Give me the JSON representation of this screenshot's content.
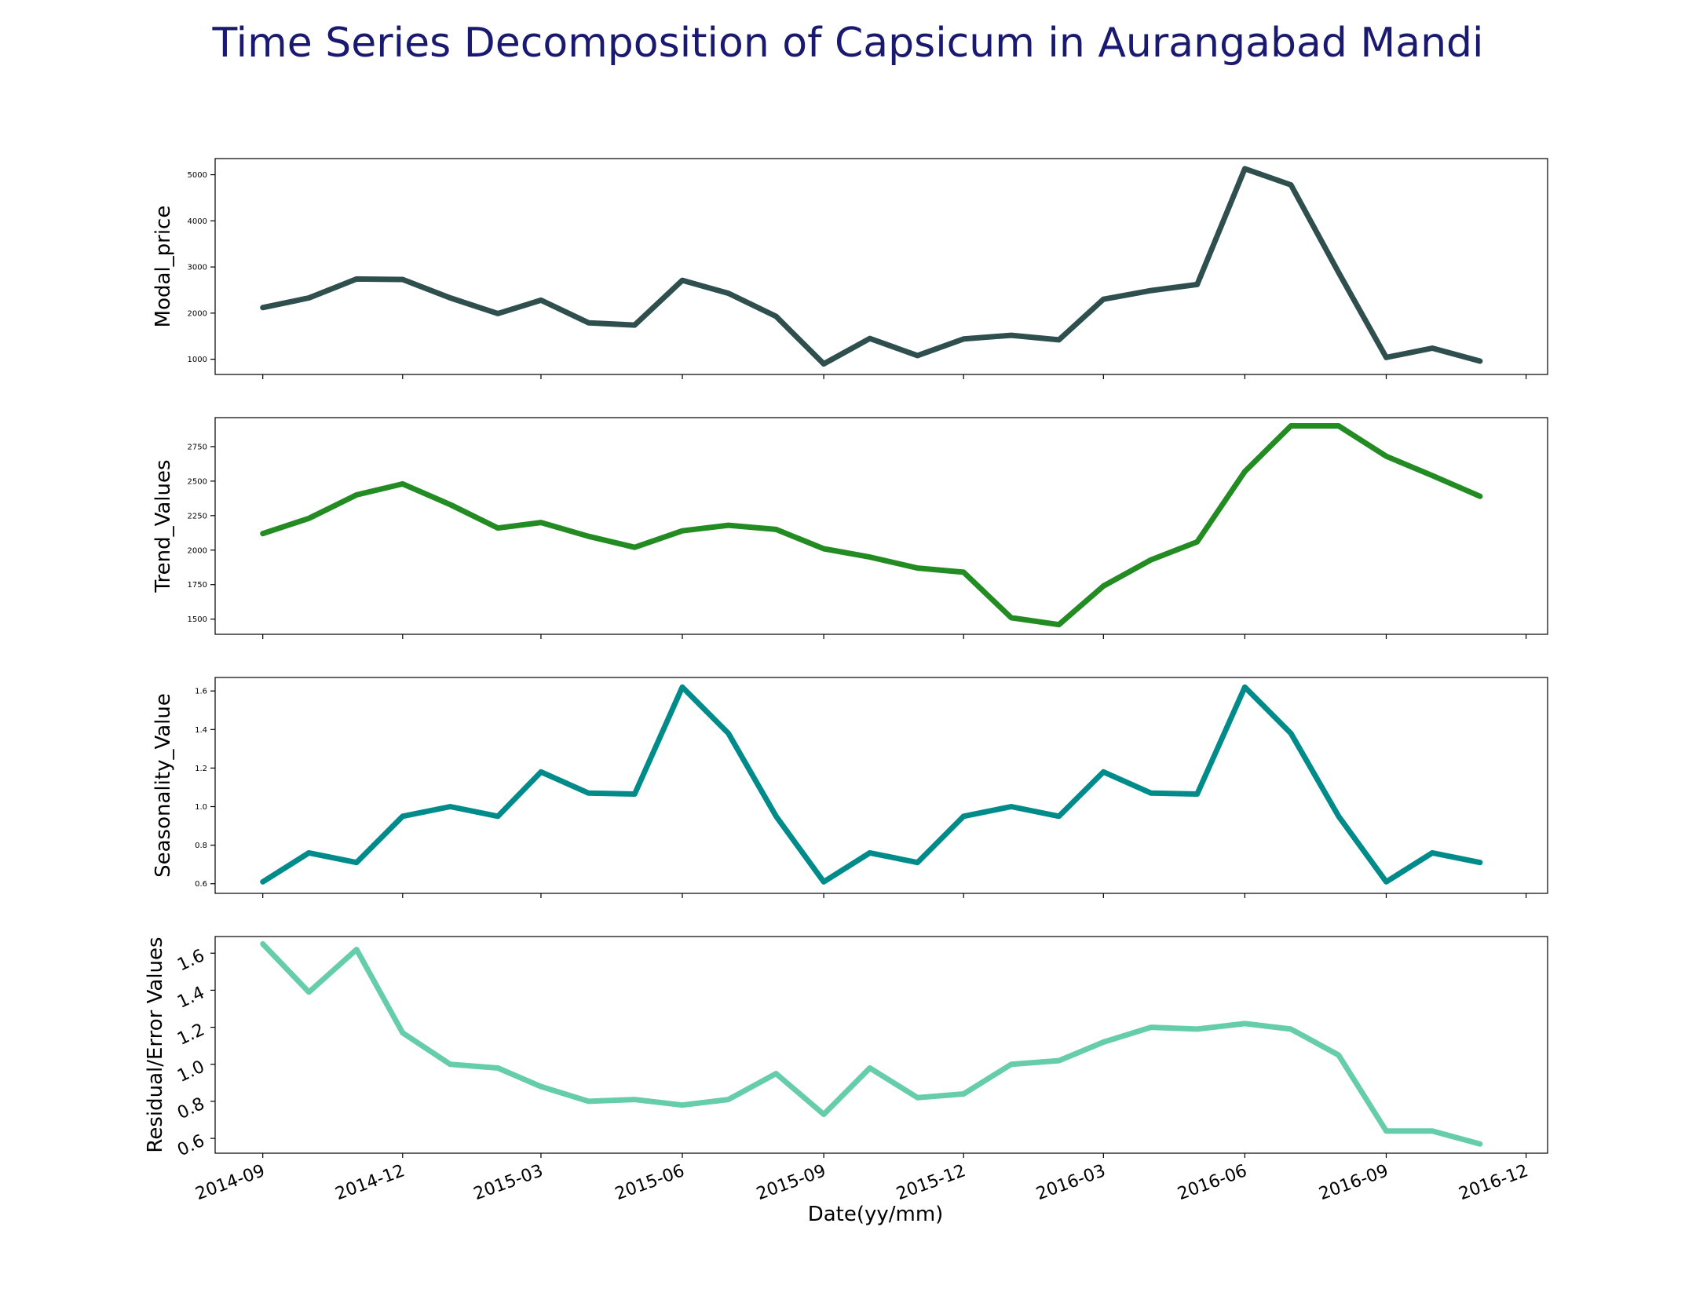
{
  "chart_data": {
    "type": "line",
    "title": "Time Series Decomposition of Capsicum in Aurangabad Mandi",
    "xlabel": "Date(yy/mm)",
    "x": [
      "2014-09",
      "2014-10",
      "2014-11",
      "2014-12",
      "2015-01",
      "2015-02",
      "2015-03",
      "2015-04",
      "2015-05",
      "2015-06",
      "2015-07",
      "2015-08",
      "2015-09",
      "2015-10",
      "2015-11",
      "2015-12",
      "2016-01",
      "2016-02",
      "2016-03",
      "2016-04",
      "2016-05",
      "2016-06",
      "2016-07",
      "2016-08",
      "2016-09",
      "2016-10",
      "2016-11"
    ],
    "xticks": [
      "2014-09",
      "2014-12",
      "2015-03",
      "2015-06",
      "2015-09",
      "2015-12",
      "2016-03",
      "2016-06",
      "2016-09",
      "2016-12"
    ],
    "xlim": [
      "2014-08-01",
      "2016-12-15"
    ],
    "grid": false,
    "panels": [
      {
        "ylabel": "Modal_price",
        "color": "#2f4f4f",
        "ylim": [
          670,
          5350
        ],
        "yticks": [
          "1000",
          "2000",
          "3000",
          "4000",
          "5000"
        ],
        "values": [
          2120,
          2330,
          2740,
          2730,
          2330,
          1990,
          2280,
          1790,
          1740,
          2710,
          2430,
          1930,
          900,
          1450,
          1080,
          1440,
          1520,
          1420,
          2300,
          2490,
          2620,
          5130,
          4780,
          2880,
          1040,
          1240,
          960
        ]
      },
      {
        "ylabel": "Trend_Values",
        "color": "#228b22",
        "ylim": [
          1390,
          2960
        ],
        "yticks": [
          "1500",
          "1750",
          "2000",
          "2250",
          "2500",
          "2750"
        ],
        "values": [
          2120,
          2230,
          2400,
          2480,
          2330,
          2160,
          2200,
          2100,
          2020,
          2140,
          2180,
          2150,
          2010,
          1950,
          1870,
          1840,
          1510,
          1460,
          1740,
          1930,
          2060,
          2570,
          2900,
          2900,
          2680,
          2540,
          2390
        ]
      },
      {
        "ylabel": "Seasonality_Value",
        "color": "#008b8b",
        "ylim": [
          0.55,
          1.67
        ],
        "yticks": [
          "0.6",
          "0.8",
          "1.0",
          "1.2",
          "1.4",
          "1.6"
        ],
        "values": [
          0.61,
          0.76,
          0.71,
          0.95,
          1.0,
          0.95,
          1.18,
          1.07,
          1.065,
          1.62,
          1.38,
          0.95,
          0.61,
          0.76,
          0.71,
          0.95,
          1.0,
          0.95,
          1.18,
          1.07,
          1.065,
          1.62,
          1.38,
          0.95,
          0.61,
          0.76,
          0.71
        ]
      },
      {
        "ylabel": "Residual/Error Values",
        "color": "#66cdaa",
        "ylim": [
          0.52,
          1.69
        ],
        "yticks": [
          "0.6",
          "0.8",
          "1.0",
          "1.2",
          "1.4",
          "1.6"
        ],
        "values": [
          1.65,
          1.39,
          1.62,
          1.17,
          1.0,
          0.98,
          0.88,
          0.8,
          0.81,
          0.78,
          0.81,
          0.95,
          0.73,
          0.98,
          0.82,
          0.84,
          1.0,
          1.02,
          1.12,
          1.2,
          1.19,
          1.22,
          1.19,
          1.05,
          0.64,
          0.64,
          0.57
        ]
      }
    ]
  }
}
